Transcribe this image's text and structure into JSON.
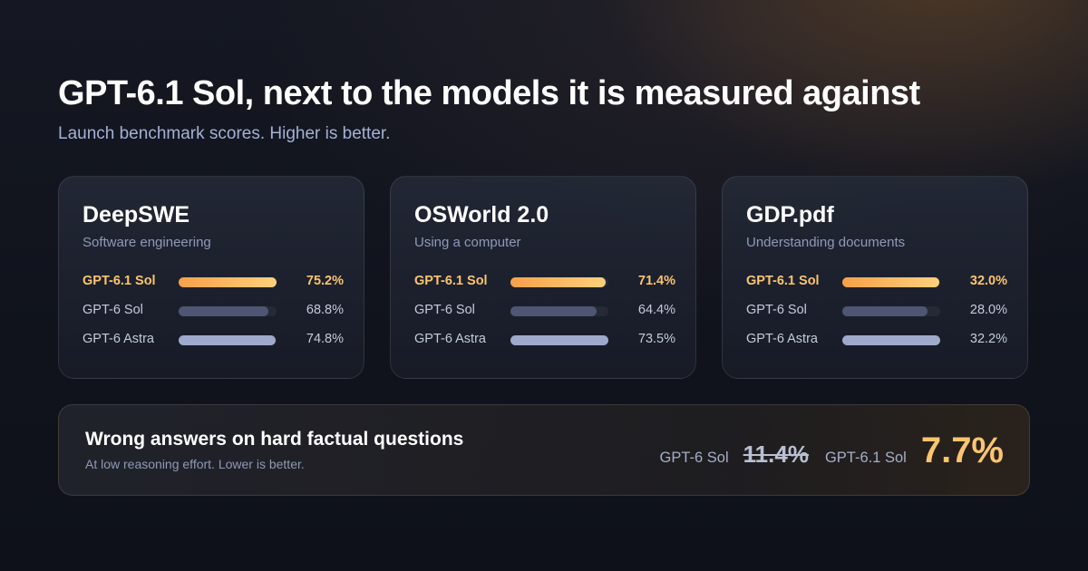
{
  "header": {
    "title": "GPT-6.1 Sol, next to the models it is measured against",
    "subtitle": "Launch benchmark scores. Higher is better."
  },
  "chart_data": [
    {
      "type": "bar",
      "title": "DeepSWE",
      "subtitle": "Software engineering",
      "categories": [
        "GPT-6.1 Sol",
        "GPT-6 Sol",
        "GPT-6 Astra"
      ],
      "values": [
        75.2,
        68.8,
        74.8
      ],
      "value_labels": [
        "75.2%",
        "68.8%",
        "74.8%"
      ]
    },
    {
      "type": "bar",
      "title": "OSWorld 2.0",
      "subtitle": "Using a computer",
      "categories": [
        "GPT-6.1 Sol",
        "GPT-6 Sol",
        "GPT-6 Astra"
      ],
      "values": [
        71.4,
        64.4,
        73.5
      ],
      "value_labels": [
        "71.4%",
        "64.4%",
        "73.5%"
      ]
    },
    {
      "type": "bar",
      "title": "GDP.pdf",
      "subtitle": "Understanding documents",
      "categories": [
        "GPT-6.1 Sol",
        "GPT-6 Sol",
        "GPT-6 Astra"
      ],
      "values": [
        32.0,
        28.0,
        32.2
      ],
      "value_labels": [
        "32.0%",
        "28.0%",
        "32.2%"
      ]
    }
  ],
  "banner": {
    "title": "Wrong answers on hard factual questions",
    "subtitle": "At low reasoning effort. Lower is better.",
    "old_label": "GPT-6 Sol",
    "old_value": "11.4%",
    "new_label": "GPT-6.1 Sol",
    "new_value": "7.7%"
  },
  "colors": {
    "highlight": "#fbc470",
    "bar_primary_start": "#f5a04a",
    "bar_primary_end": "#ffd07c",
    "bar_gpt6_sol": "#4d5774",
    "bar_gpt6_astra": "#9ea9cc"
  }
}
